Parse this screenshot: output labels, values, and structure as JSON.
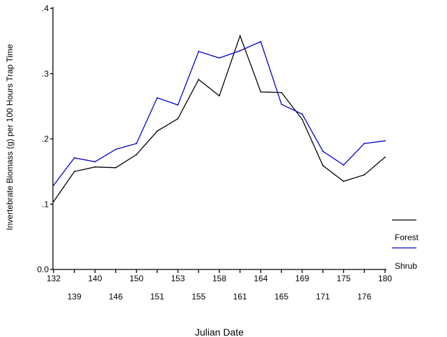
{
  "chart_data": {
    "type": "line",
    "title": "",
    "xlabel": "Julian Date",
    "ylabel": "Invertebrate Biomass (g) per 100 Hours Trap Time",
    "categories": [
      "132",
      "139",
      "140",
      "146",
      "150",
      "151",
      "153",
      "155",
      "158",
      "161",
      "164",
      "165",
      "169",
      "171",
      "175",
      "176",
      "180"
    ],
    "ylim": [
      0,
      0.4
    ],
    "y_ticks": [
      {
        "value": 0,
        "label": "0.0"
      },
      {
        "value": 0.1,
        "label": ".1"
      },
      {
        "value": 0.2,
        "label": ".2"
      },
      {
        "value": 0.3,
        "label": ".3"
      },
      {
        "value": 0.4,
        "label": ".4"
      }
    ],
    "series": [
      {
        "name": "Forest",
        "color": "#000000",
        "values": [
          0.104,
          0.15,
          0.157,
          0.156,
          0.176,
          0.212,
          0.231,
          0.291,
          0.266,
          0.358,
          0.272,
          0.271,
          0.23,
          0.159,
          0.135,
          0.145,
          0.172
        ]
      },
      {
        "name": "Shrub",
        "color": "#0000cc",
        "values": [
          0.129,
          0.171,
          0.165,
          0.184,
          0.193,
          0.263,
          0.252,
          0.334,
          0.324,
          0.335,
          0.349,
          0.253,
          0.238,
          0.181,
          0.16,
          0.193,
          0.197
        ]
      }
    ],
    "legend_position": "right",
    "grid": false
  }
}
